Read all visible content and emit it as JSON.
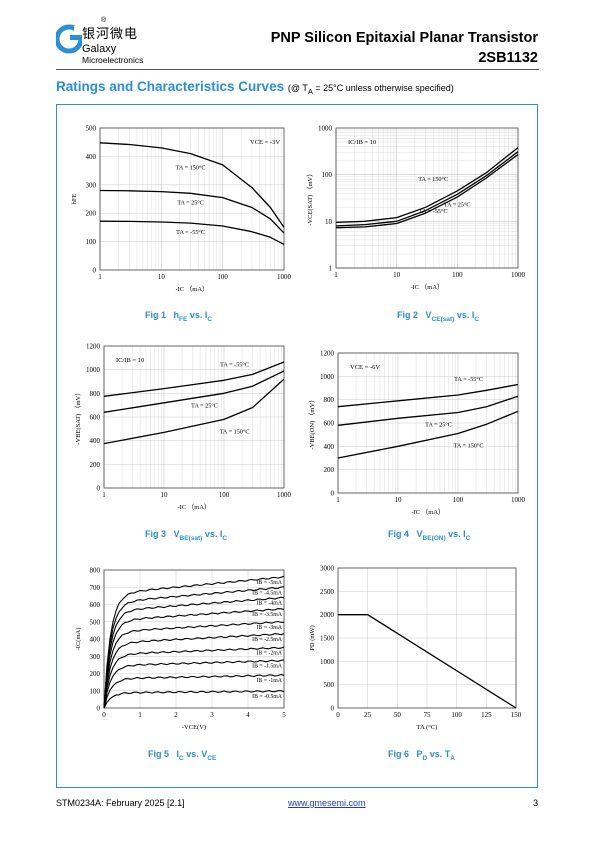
{
  "header": {
    "logo_icon": "galaxy-g-logo",
    "company_cn": "银河微电",
    "registered_mark": "®",
    "brand_line1": "Galaxy",
    "brand_line2": "Microelectronics",
    "title": "PNP Silicon Epitaxial Planar Transistor",
    "part_number": "2SB1132",
    "accent_color": "#2a8fd6"
  },
  "section": {
    "title": "Ratings and Characteristics Curves",
    "condition_pre": "(@ T",
    "condition_sub": "A",
    "condition_post": " = 25°C unless otherwise specified)"
  },
  "captions": {
    "fig1": {
      "num": "Fig 1",
      "a": "h",
      "a_sub": "FE",
      "b": " vs. I",
      "b_sub": "C"
    },
    "fig2": {
      "num": "Fig 2",
      "a": "V",
      "a_sub": "CE(sat)",
      "b": " vs. I",
      "b_sub": "C"
    },
    "fig3": {
      "num": "Fig 3",
      "a": "V",
      "a_sub": "BE(sat)",
      "b": " vs. I",
      "b_sub": "C"
    },
    "fig4": {
      "num": "Fig 4",
      "a": "V",
      "a_sub": "BE(ON)",
      "b": " vs. I",
      "b_sub": "C"
    },
    "fig5": {
      "num": "Fig 5",
      "a": "I",
      "a_sub": "C",
      "b": " vs. V",
      "b_sub": "CE"
    },
    "fig6": {
      "num": "Fig 6",
      "a": "P",
      "a_sub": "D",
      "b": " vs. T",
      "b_sub": "A"
    }
  },
  "chart_data": [
    {
      "id": "fig1",
      "type": "line",
      "x_scale": "log",
      "xlim": [
        1,
        1000
      ],
      "ylim": [
        0,
        500
      ],
      "xticks": [
        "1",
        "10",
        "100",
        "1000"
      ],
      "yticks": [
        "0",
        "100",
        "200",
        "300",
        "400",
        "500"
      ],
      "ylabel": "hFE",
      "xlabel": "-IC （mA）",
      "annotation": "VCE = -3V",
      "series": [
        {
          "name": "TA = 150°C",
          "x": [
            1,
            3,
            10,
            30,
            100,
            300,
            600,
            1000
          ],
          "y": [
            448,
            442,
            430,
            410,
            370,
            290,
            220,
            150
          ]
        },
        {
          "name": "TA = 25°C",
          "x": [
            1,
            3,
            10,
            30,
            100,
            300,
            600,
            1000
          ],
          "y": [
            280,
            279,
            276,
            270,
            255,
            220,
            180,
            130
          ]
        },
        {
          "name": "TA = -55°C",
          "x": [
            1,
            3,
            10,
            30,
            100,
            300,
            600,
            1000
          ],
          "y": [
            172,
            171,
            169,
            165,
            155,
            135,
            115,
            90
          ]
        }
      ]
    },
    {
      "id": "fig2",
      "type": "line",
      "x_scale": "log",
      "y_scale": "log",
      "xlim": [
        1,
        1000
      ],
      "ylim": [
        1,
        1000
      ],
      "xticks": [
        "1",
        "10",
        "100",
        "1000"
      ],
      "yticks": [
        "1",
        "10",
        "100",
        "1000"
      ],
      "ylabel": "-VCE(SAT) （mV）",
      "xlabel": "-IC （mA）",
      "annotation": "IC/IB = 10",
      "series": [
        {
          "name": "TA = 150°C",
          "x": [
            1,
            3,
            10,
            30,
            100,
            300,
            1000
          ],
          "y": [
            9.5,
            10,
            12,
            20,
            45,
            110,
            380
          ]
        },
        {
          "name": "TA = 25°C",
          "x": [
            1,
            3,
            10,
            30,
            100,
            300,
            1000
          ],
          "y": [
            8,
            8.5,
            10,
            17,
            38,
            95,
            310
          ]
        },
        {
          "name": "TA = -55°C",
          "x": [
            1,
            3,
            10,
            30,
            100,
            300,
            1000
          ],
          "y": [
            7.3,
            7.6,
            9,
            15,
            33,
            85,
            270
          ]
        }
      ]
    },
    {
      "id": "fig3",
      "type": "line",
      "x_scale": "log",
      "xlim": [
        1,
        1000
      ],
      "ylim": [
        0,
        1200
      ],
      "xticks": [
        "1",
        "10",
        "100",
        "1000"
      ],
      "yticks": [
        "0",
        "200",
        "400",
        "600",
        "800",
        "1000",
        "1200"
      ],
      "ylabel": "-VBE(SAT) （mV）",
      "xlabel": "-IC （mA）",
      "annotation": "IC/IB = 10",
      "series": [
        {
          "name": "TA = -55°C",
          "x": [
            1,
            10,
            100,
            300,
            1000
          ],
          "y": [
            775,
            840,
            910,
            960,
            1065
          ]
        },
        {
          "name": "TA = 25°C",
          "x": [
            1,
            10,
            100,
            300,
            1000
          ],
          "y": [
            640,
            720,
            800,
            860,
            990
          ]
        },
        {
          "name": "TA = 150°C",
          "x": [
            1,
            10,
            100,
            300,
            1000
          ],
          "y": [
            375,
            470,
            580,
            680,
            920
          ]
        }
      ]
    },
    {
      "id": "fig4",
      "type": "line",
      "x_scale": "log",
      "xlim": [
        1,
        1000
      ],
      "ylim": [
        0,
        1200
      ],
      "xticks": [
        "1",
        "10",
        "100",
        "1000"
      ],
      "yticks": [
        "0",
        "200",
        "400",
        "600",
        "800",
        "1000",
        "1200"
      ],
      "ylabel": "-VBE(ON) （mV）",
      "xlabel": "-IC （mA）",
      "annotation": "VCE = -6V",
      "series": [
        {
          "name": "TA = -55°C",
          "x": [
            1,
            10,
            100,
            300,
            1000
          ],
          "y": [
            740,
            790,
            840,
            880,
            930
          ]
        },
        {
          "name": "TA = 25°C",
          "x": [
            1,
            10,
            100,
            300,
            1000
          ],
          "y": [
            580,
            640,
            690,
            740,
            830
          ]
        },
        {
          "name": "TA = 150°C",
          "x": [
            1,
            10,
            100,
            300,
            1000
          ],
          "y": [
            300,
            400,
            510,
            590,
            700
          ]
        }
      ]
    },
    {
      "id": "fig5",
      "type": "line",
      "xlim": [
        0,
        5
      ],
      "ylim": [
        0,
        800
      ],
      "xticks": [
        "0",
        "1",
        "2",
        "3",
        "4",
        "5"
      ],
      "yticks": [
        "0",
        "100",
        "200",
        "300",
        "400",
        "500",
        "600",
        "700",
        "800"
      ],
      "ylabel": "-IC(mA)",
      "xlabel": "-VCE(V)",
      "series": [
        {
          "name": "IB = -5mA",
          "sat": 660,
          "end": 760
        },
        {
          "name": "IB = -4.5mA",
          "sat": 610,
          "end": 700
        },
        {
          "name": "IB = -4mA",
          "sat": 560,
          "end": 640
        },
        {
          "name": "IB = -3.5mA",
          "sat": 505,
          "end": 575
        },
        {
          "name": "IB = -3mA",
          "sat": 440,
          "end": 500
        },
        {
          "name": "IB = -2.5mA",
          "sat": 375,
          "end": 430
        },
        {
          "name": "IB = -2mA",
          "sat": 310,
          "end": 350
        },
        {
          "name": "IB = -1.5mA",
          "sat": 245,
          "end": 275
        },
        {
          "name": "IB = -1mA",
          "sat": 170,
          "end": 190
        },
        {
          "name": "IB = -0.5mA",
          "sat": 88,
          "end": 98
        }
      ]
    },
    {
      "id": "fig6",
      "type": "line",
      "xlim": [
        0,
        150
      ],
      "ylim": [
        0,
        3000
      ],
      "xticks": [
        "0",
        "25",
        "50",
        "75",
        "100",
        "125",
        "150"
      ],
      "yticks": [
        "0",
        "500",
        "1000",
        "1500",
        "2000",
        "2500",
        "3000"
      ],
      "ylabel": "PD (mW)",
      "xlabel": "TA (°C)",
      "series": [
        {
          "name": "",
          "x": [
            0,
            25,
            150
          ],
          "y": [
            2000,
            2000,
            0
          ]
        }
      ]
    }
  ],
  "footer": {
    "doc_id": "STM0234A: February 2025 [2.1]",
    "website": "www.gmesemi.com",
    "page": "3"
  }
}
